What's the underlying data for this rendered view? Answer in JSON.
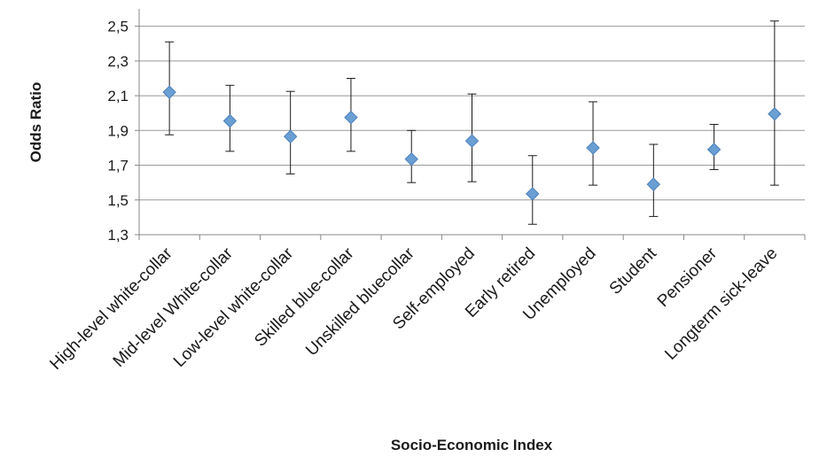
{
  "chart_data": {
    "type": "scatter",
    "title": "",
    "xlabel": "Socio-Economic Index",
    "ylabel": "Odds Ratio",
    "ylim": [
      1.3,
      2.6
    ],
    "yticks": [
      "1,3",
      "1,5",
      "1,7",
      "1,9",
      "2,1",
      "2,3",
      "2,5"
    ],
    "ytick_values": [
      1.3,
      1.5,
      1.7,
      1.9,
      2.1,
      2.3,
      2.5
    ],
    "grid": true,
    "legend": "none",
    "marker": "diamond",
    "colors": {
      "marker": "#6a9fd4",
      "marker_stroke": "#4a7fb8",
      "error_bar": "#1a1a1a",
      "grid": "#999999",
      "axis": "#888888"
    },
    "categories": [
      "High-level white-collar",
      "Mid-level White-collar",
      "Low-level white-collar",
      "Skilled blue-collar",
      "Unskilled bluecollar",
      "Self-employed",
      "Early retired",
      "Unemployed",
      "Student",
      "Pensioner",
      "Longterm sick-leave"
    ],
    "values": [
      2.12,
      1.955,
      1.865,
      1.975,
      1.735,
      1.84,
      1.535,
      1.8,
      1.59,
      1.79,
      1.995
    ],
    "lower": [
      1.875,
      1.78,
      1.65,
      1.78,
      1.6,
      1.605,
      1.36,
      1.585,
      1.405,
      1.675,
      1.585
    ],
    "upper": [
      2.41,
      2.16,
      2.125,
      2.2,
      1.9,
      2.11,
      1.755,
      2.065,
      1.82,
      1.935,
      2.53
    ]
  }
}
